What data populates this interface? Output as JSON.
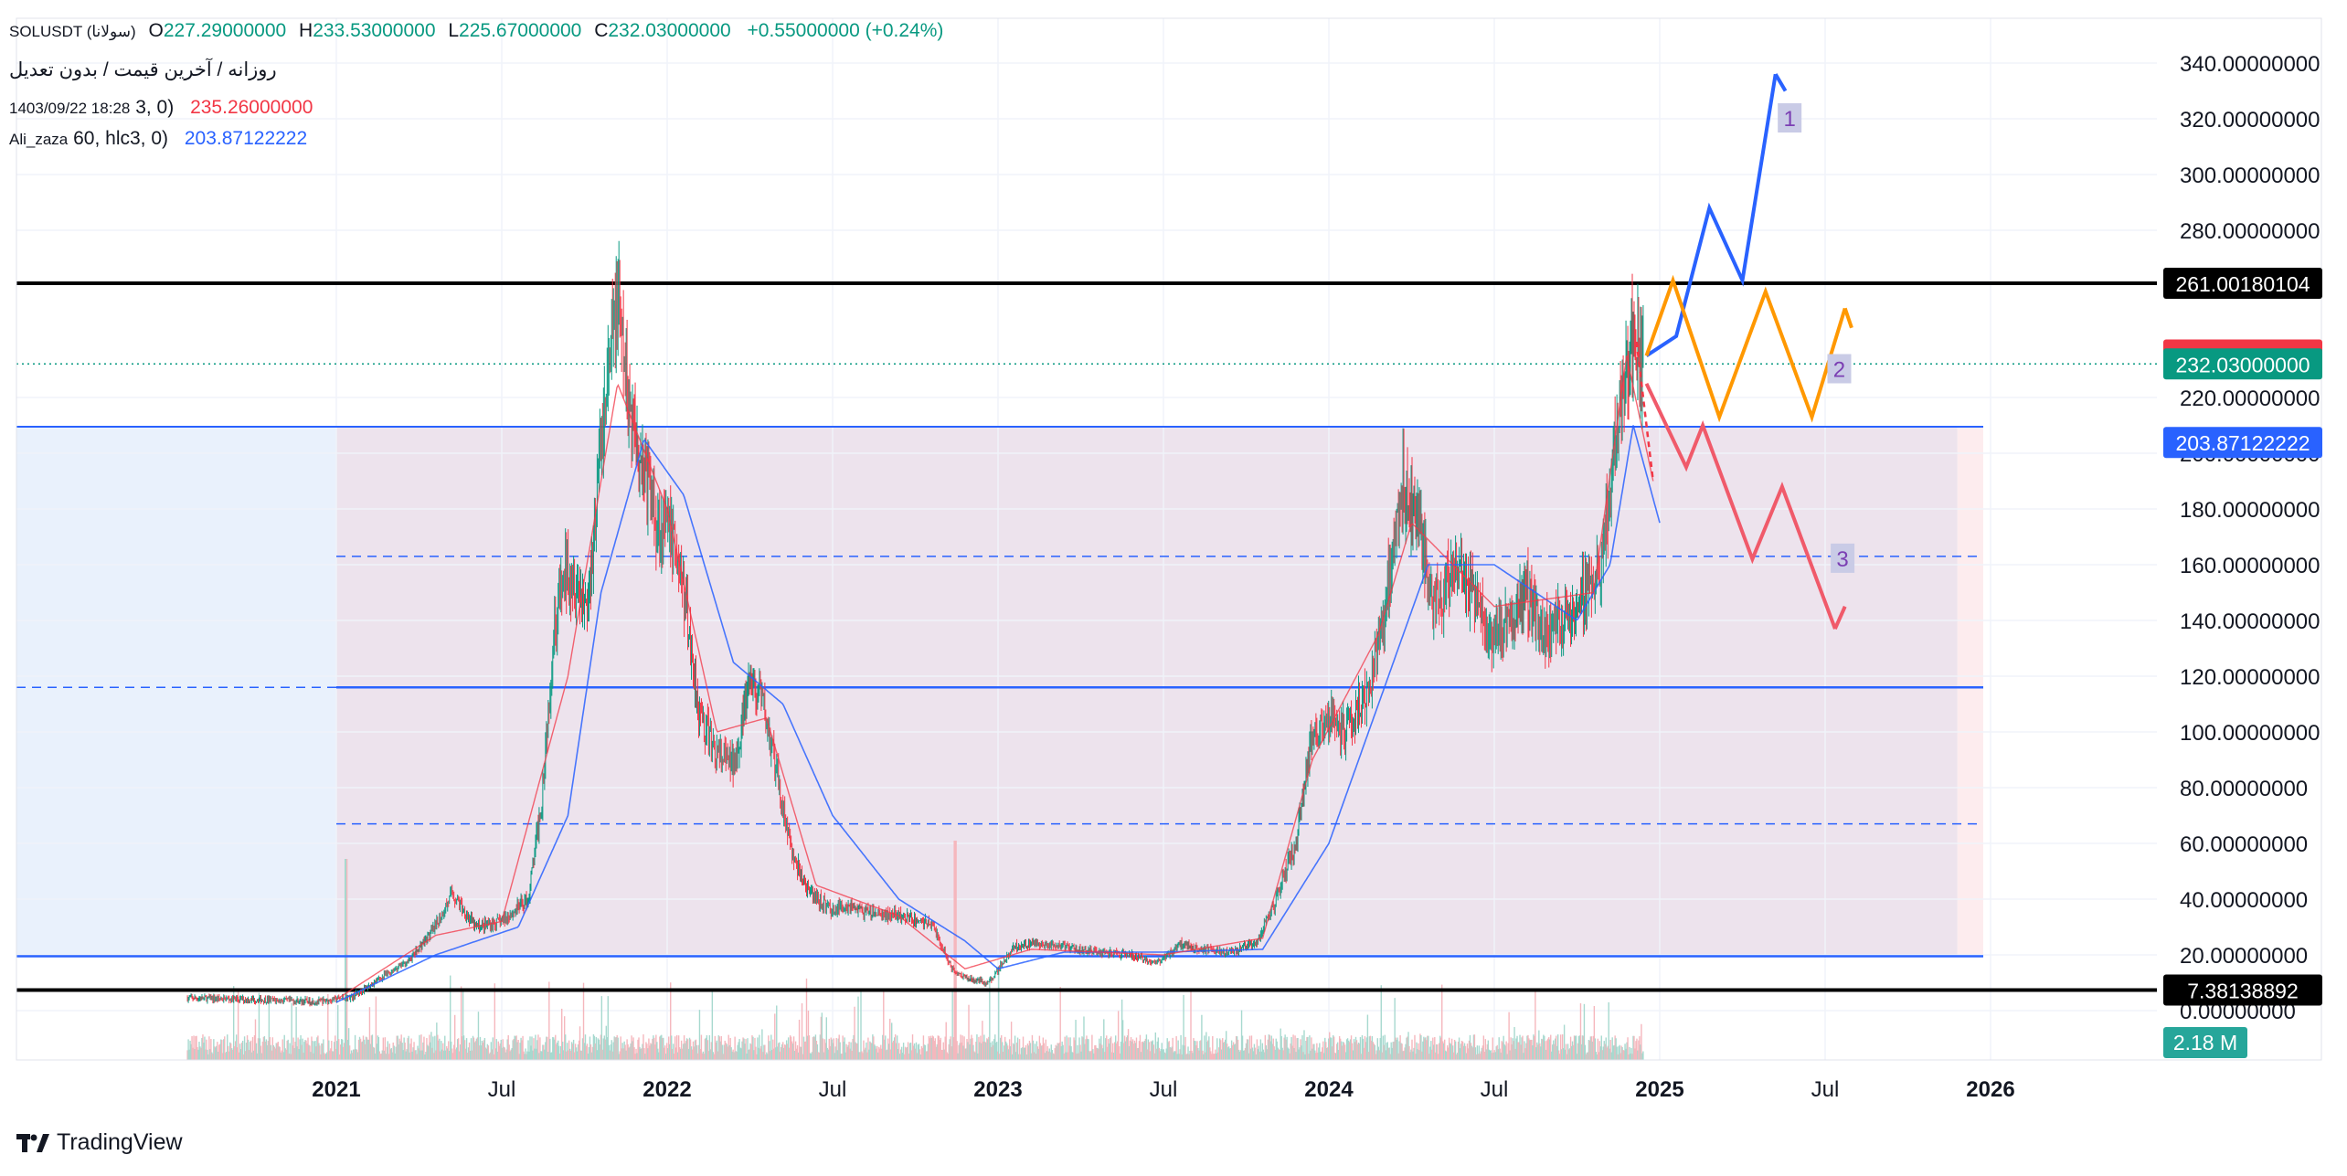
{
  "legend": {
    "symbol": "SOLUSDT (سولانا)",
    "o_label": "O",
    "o_value": "227.29000000",
    "h_label": "H",
    "h_value": "233.53000000",
    "l_label": "L",
    "l_value": "225.67000000",
    "c_label": "C",
    "c_value": "232.03000000",
    "change": "+0.55000000 (+0.24%)",
    "subtitle": "روزانه / آخرین قیمت / بدون تعدیل",
    "timestamp": "1403/09/22 18:28",
    "ma1_params": "3, 0)",
    "ma1_value": "235.26000000",
    "author": "Ali_zaza",
    "ma2_params": "60, hlc3, 0)",
    "ma2_value": "203.87122222"
  },
  "colors": {
    "up": "#089981",
    "down": "#f23645",
    "ma_red": "#f23645",
    "ma_blue": "#2962ff",
    "scenario_blue": "#2962ff",
    "scenario_orange": "#ff9800",
    "scenario_red": "#f05a6a",
    "range_fill": "#ede3ed",
    "left_fill": "#e9f1fc"
  },
  "brand": {
    "icon": "tradingview-logo-icon",
    "name": "TradingView"
  },
  "chart_data": {
    "type": "candlestick",
    "y_ticks": [
      "0.00000000",
      "20.00000000",
      "40.00000000",
      "60.00000000",
      "80.00000000",
      "100.00000000",
      "120.00000000",
      "140.00000000",
      "160.00000000",
      "180.00000000",
      "200.00000000",
      "220.00000000",
      "280.00000000",
      "300.00000000",
      "320.00000000",
      "340.00000000"
    ],
    "y_range": [
      -8,
      364
    ],
    "x_ticks": [
      {
        "label": "2021",
        "t": 2021.0,
        "bold": true
      },
      {
        "label": "Jul",
        "t": 2021.5,
        "bold": false
      },
      {
        "label": "2022",
        "t": 2022.0,
        "bold": true
      },
      {
        "label": "Jul",
        "t": 2022.5,
        "bold": false
      },
      {
        "label": "2023",
        "t": 2023.0,
        "bold": true
      },
      {
        "label": "Jul",
        "t": 2023.5,
        "bold": false
      },
      {
        "label": "2024",
        "t": 2024.0,
        "bold": true
      },
      {
        "label": "Jul",
        "t": 2024.5,
        "bold": false
      },
      {
        "label": "2025",
        "t": 2025.0,
        "bold": true
      },
      {
        "label": "Jul",
        "t": 2025.5,
        "bold": false
      },
      {
        "label": "2026",
        "t": 2026.0,
        "bold": true
      }
    ],
    "price_tags": [
      {
        "label": "261.00180104",
        "value": 261.00180104,
        "color": "#000000"
      },
      {
        "label": "235.26000000",
        "value": 235.26,
        "color": "#f23645"
      },
      {
        "label": "232.03000000",
        "value": 232.03,
        "color": "#089981"
      },
      {
        "label": "203.87122222",
        "value": 203.87122222,
        "color": "#2962ff"
      },
      {
        "label": "7.38138892",
        "value": 7.38138892,
        "color": "#000000"
      }
    ],
    "volume_tag": {
      "label": "2.18 M",
      "color": "#26a69a"
    },
    "horizontal_lines": [
      {
        "value": 261.0,
        "color": "#000000",
        "style": "solid",
        "width": 4
      },
      {
        "value": 7.38,
        "color": "#000000",
        "style": "solid",
        "width": 4
      },
      {
        "value": 209.5,
        "color": "#2962ff",
        "style": "solid",
        "width": 2
      },
      {
        "value": 116.0,
        "color": "#2962ff",
        "style": "solid",
        "width": 2.5
      },
      {
        "value": 19.5,
        "color": "#2962ff",
        "style": "solid",
        "width": 2.5
      },
      {
        "value": 163.0,
        "color": "#2962ff",
        "style": "dashed",
        "width": 1.5
      },
      {
        "value": 67.0,
        "color": "#2962ff",
        "style": "dashed",
        "width": 1.5
      },
      {
        "value": 232.03,
        "color": "#089981",
        "style": "dotted",
        "width": 1.5
      }
    ],
    "price_path": [
      [
        2020.55,
        4.5
      ],
      [
        2020.75,
        4
      ],
      [
        2020.95,
        3.2
      ],
      [
        2021.05,
        5
      ],
      [
        2021.15,
        13
      ],
      [
        2021.22,
        18
      ],
      [
        2021.3,
        30
      ],
      [
        2021.35,
        42
      ],
      [
        2021.42,
        30
      ],
      [
        2021.5,
        32
      ],
      [
        2021.58,
        40
      ],
      [
        2021.62,
        75
      ],
      [
        2021.66,
        140
      ],
      [
        2021.7,
        160
      ],
      [
        2021.76,
        145
      ],
      [
        2021.8,
        205
      ],
      [
        2021.85,
        255
      ],
      [
        2021.88,
        220
      ],
      [
        2021.93,
        195
      ],
      [
        2021.97,
        175
      ],
      [
        2022.02,
        170
      ],
      [
        2022.05,
        150
      ],
      [
        2022.1,
        105
      ],
      [
        2022.15,
        92
      ],
      [
        2022.2,
        88
      ],
      [
        2022.25,
        118
      ],
      [
        2022.29,
        110
      ],
      [
        2022.33,
        85
      ],
      [
        2022.38,
        55
      ],
      [
        2022.43,
        42
      ],
      [
        2022.5,
        36
      ],
      [
        2022.55,
        38
      ],
      [
        2022.6,
        35
      ],
      [
        2022.7,
        34
      ],
      [
        2022.8,
        31
      ],
      [
        2022.86,
        15
      ],
      [
        2022.9,
        12
      ],
      [
        2022.97,
        10
      ],
      [
        2023.05,
        23
      ],
      [
        2023.1,
        24
      ],
      [
        2023.2,
        23
      ],
      [
        2023.3,
        21
      ],
      [
        2023.4,
        20
      ],
      [
        2023.48,
        17
      ],
      [
        2023.55,
        24
      ],
      [
        2023.62,
        22
      ],
      [
        2023.7,
        21
      ],
      [
        2023.78,
        24
      ],
      [
        2023.84,
        40
      ],
      [
        2023.9,
        60
      ],
      [
        2023.95,
        100
      ],
      [
        2024.0,
        105
      ],
      [
        2024.05,
        100
      ],
      [
        2024.12,
        115
      ],
      [
        2024.17,
        145
      ],
      [
        2024.22,
        190
      ],
      [
        2024.27,
        175
      ],
      [
        2024.32,
        145
      ],
      [
        2024.38,
        160
      ],
      [
        2024.43,
        150
      ],
      [
        2024.48,
        135
      ],
      [
        2024.55,
        140
      ],
      [
        2024.6,
        150
      ],
      [
        2024.65,
        135
      ],
      [
        2024.7,
        140
      ],
      [
        2024.75,
        145
      ],
      [
        2024.82,
        160
      ],
      [
        2024.87,
        210
      ],
      [
        2024.92,
        245
      ],
      [
        2024.95,
        232
      ]
    ],
    "ma_fast_path": [
      [
        2021.0,
        4
      ],
      [
        2021.3,
        27
      ],
      [
        2021.5,
        32
      ],
      [
        2021.7,
        120
      ],
      [
        2021.85,
        225
      ],
      [
        2022.0,
        180
      ],
      [
        2022.15,
        100
      ],
      [
        2022.3,
        105
      ],
      [
        2022.45,
        45
      ],
      [
        2022.7,
        34
      ],
      [
        2022.9,
        15
      ],
      [
        2023.1,
        22
      ],
      [
        2023.5,
        20
      ],
      [
        2023.8,
        26
      ],
      [
        2023.95,
        90
      ],
      [
        2024.15,
        135
      ],
      [
        2024.25,
        175
      ],
      [
        2024.5,
        145
      ],
      [
        2024.8,
        150
      ],
      [
        2024.9,
        235
      ],
      [
        2024.98,
        190
      ]
    ],
    "ma_slow_path": [
      [
        2021.0,
        3
      ],
      [
        2021.3,
        20
      ],
      [
        2021.55,
        30
      ],
      [
        2021.7,
        70
      ],
      [
        2021.8,
        150
      ],
      [
        2021.93,
        205
      ],
      [
        2022.05,
        185
      ],
      [
        2022.2,
        125
      ],
      [
        2022.35,
        110
      ],
      [
        2022.5,
        70
      ],
      [
        2022.7,
        40
      ],
      [
        2022.9,
        25
      ],
      [
        2023.0,
        15
      ],
      [
        2023.2,
        21
      ],
      [
        2023.5,
        21
      ],
      [
        2023.8,
        22
      ],
      [
        2024.0,
        60
      ],
      [
        2024.15,
        110
      ],
      [
        2024.3,
        160
      ],
      [
        2024.5,
        160
      ],
      [
        2024.75,
        140
      ],
      [
        2024.85,
        160
      ],
      [
        2024.92,
        210
      ],
      [
        2025.0,
        175
      ]
    ],
    "scenarios": [
      {
        "label": "1",
        "color": "#2962ff",
        "points": [
          [
            2024.96,
            235
          ],
          [
            2025.05,
            242
          ],
          [
            2025.15,
            288
          ],
          [
            2025.25,
            262
          ],
          [
            2025.35,
            336
          ]
        ],
        "arrow_to": [
          2025.38,
          330
        ],
        "label_at": [
          2025.39,
          320
        ]
      },
      {
        "label": "2",
        "color": "#ff9800",
        "points": [
          [
            2024.96,
            235
          ],
          [
            2025.04,
            262
          ],
          [
            2025.18,
            213
          ],
          [
            2025.32,
            258
          ],
          [
            2025.46,
            213
          ],
          [
            2025.56,
            252
          ]
        ],
        "arrow_to": [
          2025.58,
          245
        ],
        "label_at": [
          2025.54,
          230
        ]
      },
      {
        "label": "3",
        "color": "#f05a6a",
        "points": [
          [
            2024.96,
            225
          ],
          [
            2025.08,
            195
          ],
          [
            2025.13,
            210
          ],
          [
            2025.28,
            162
          ],
          [
            2025.37,
            188
          ],
          [
            2025.53,
            137
          ]
        ],
        "arrow_to": [
          2025.56,
          145
        ],
        "label_at": [
          2025.55,
          162
        ]
      }
    ],
    "range_box": {
      "t0": 2021.0,
      "t1": 2025.9,
      "top": 209.5,
      "bottom": 19.5
    }
  }
}
